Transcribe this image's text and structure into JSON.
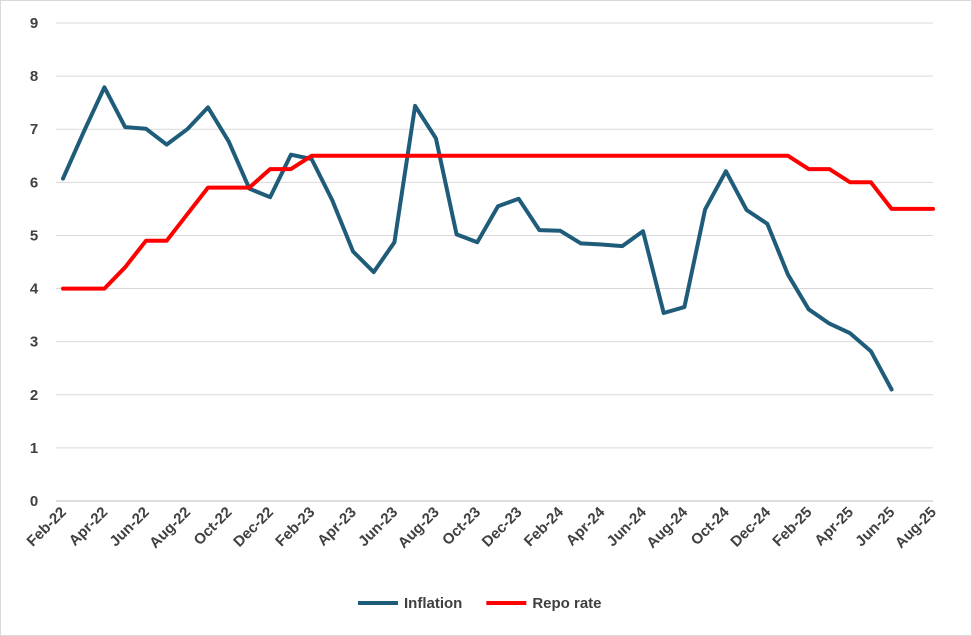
{
  "chart_data": {
    "type": "line",
    "title": "",
    "xlabel": "",
    "ylabel": "",
    "ylim": [
      0,
      9
    ],
    "yticks": [
      0,
      1,
      2,
      3,
      4,
      5,
      6,
      7,
      8,
      9
    ],
    "grid": true,
    "legend_position": "bottom",
    "x": [
      "Feb-22",
      "Mar-22",
      "Apr-22",
      "May-22",
      "Jun-22",
      "Jul-22",
      "Aug-22",
      "Sep-22",
      "Oct-22",
      "Nov-22",
      "Dec-22",
      "Jan-23",
      "Feb-23",
      "Mar-23",
      "Apr-23",
      "May-23",
      "Jun-23",
      "Jul-23",
      "Aug-23",
      "Sep-23",
      "Oct-23",
      "Nov-23",
      "Dec-23",
      "Jan-24",
      "Feb-24",
      "Mar-24",
      "Apr-24",
      "May-24",
      "Jun-24",
      "Jul-24",
      "Aug-24",
      "Sep-24",
      "Oct-24",
      "Nov-24",
      "Dec-24",
      "Jan-25",
      "Feb-25",
      "Mar-25",
      "Apr-25",
      "May-25",
      "Jun-25",
      "Jul-25",
      "Aug-25"
    ],
    "x_tick_labels": [
      "Feb-22",
      "Apr-22",
      "Jun-22",
      "Aug-22",
      "Oct-22",
      "Dec-22",
      "Feb-23",
      "Apr-23",
      "Jun-23",
      "Aug-23",
      "Oct-23",
      "Dec-23",
      "Feb-24",
      "Apr-24",
      "Jun-24",
      "Aug-24",
      "Oct-24",
      "Dec-24",
      "Feb-25",
      "Apr-25",
      "Jun-25",
      "Aug-25"
    ],
    "series": [
      {
        "name": "Inflation",
        "color": "#1f5c7a",
        "values": [
          6.07,
          6.95,
          7.79,
          7.04,
          7.01,
          6.71,
          7.0,
          7.41,
          6.77,
          5.88,
          5.72,
          6.52,
          6.44,
          5.66,
          4.7,
          4.31,
          4.87,
          7.44,
          6.83,
          5.02,
          4.87,
          5.55,
          5.69,
          5.1,
          5.09,
          4.85,
          4.83,
          4.8,
          5.08,
          3.54,
          3.65,
          5.49,
          6.21,
          5.48,
          5.22,
          4.26,
          3.61,
          3.34,
          3.16,
          2.82,
          2.1,
          null,
          null
        ]
      },
      {
        "name": "Repo rate",
        "color": "#ff0000",
        "values": [
          4.0,
          4.0,
          4.0,
          4.4,
          4.9,
          4.9,
          5.4,
          5.9,
          5.9,
          5.9,
          6.25,
          6.25,
          6.5,
          6.5,
          6.5,
          6.5,
          6.5,
          6.5,
          6.5,
          6.5,
          6.5,
          6.5,
          6.5,
          6.5,
          6.5,
          6.5,
          6.5,
          6.5,
          6.5,
          6.5,
          6.5,
          6.5,
          6.5,
          6.5,
          6.5,
          6.5,
          6.25,
          6.25,
          6.0,
          6.0,
          5.5,
          5.5,
          5.5
        ]
      }
    ]
  }
}
